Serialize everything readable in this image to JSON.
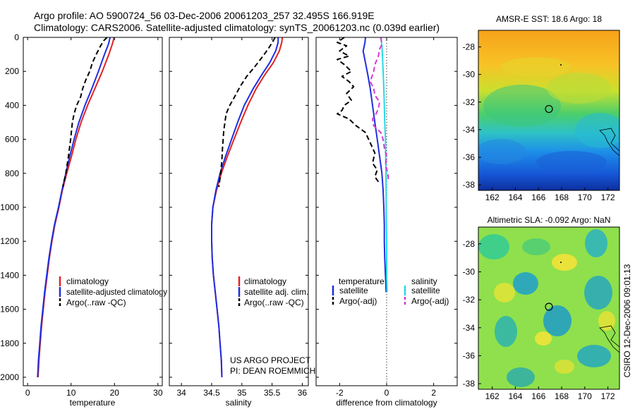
{
  "header": {
    "line1": "Argo profile: AO 5900724_56 03-Dec-2006 20061203_257 32.495S 166.919E",
    "line2": "Climatology: CARS2006. Satellite-adjusted climatology: synTS_20061203.nc (0.039d earlier)"
  },
  "credit": "CSIRO 12-Dec-2006 09:01:13",
  "colors": {
    "climatology": "#e32222",
    "satellite": "#1f2ee0",
    "argo": "#000000",
    "sal_satellite": "#26d9e6",
    "sal_argo": "#d63ad6"
  },
  "chart_data": [
    {
      "id": "temperature",
      "type": "line",
      "xlabel": "temperature",
      "xlim": [
        -1,
        31
      ],
      "xticks": [
        0,
        10,
        20,
        30
      ],
      "ylim": [
        2050,
        0
      ],
      "yticks": [
        0,
        200,
        400,
        600,
        800,
        1000,
        1200,
        1400,
        1600,
        1800,
        2000
      ],
      "legend": [
        "climatology",
        "satellite-adjusted climatology",
        "Argo(..raw -QC)"
      ],
      "series": [
        {
          "name": "climatology",
          "color_key": "climatology",
          "dash": false,
          "points": [
            [
              19.9,
              0
            ],
            [
              19.5,
              40
            ],
            [
              18.7,
              100
            ],
            [
              17.2,
              200
            ],
            [
              15.5,
              300
            ],
            [
              13.8,
              400
            ],
            [
              12.3,
              500
            ],
            [
              11.1,
              600
            ],
            [
              10.1,
              700
            ],
            [
              9.0,
              800
            ],
            [
              8.0,
              900
            ],
            [
              7.2,
              1000
            ],
            [
              6.3,
              1100
            ],
            [
              5.6,
              1200
            ],
            [
              5.0,
              1300
            ],
            [
              4.5,
              1400
            ],
            [
              4.0,
              1500
            ],
            [
              3.6,
              1600
            ],
            [
              3.2,
              1700
            ],
            [
              2.9,
              1800
            ],
            [
              2.6,
              1900
            ],
            [
              2.4,
              2000
            ]
          ]
        },
        {
          "name": "satellite-adjusted climatology",
          "color_key": "satellite",
          "dash": false,
          "points": [
            [
              19.0,
              0
            ],
            [
              18.6,
              40
            ],
            [
              17.7,
              100
            ],
            [
              16.3,
              200
            ],
            [
              14.8,
              300
            ],
            [
              13.2,
              400
            ],
            [
              11.8,
              500
            ],
            [
              10.7,
              600
            ],
            [
              9.7,
              700
            ],
            [
              8.8,
              800
            ],
            [
              7.9,
              900
            ],
            [
              7.1,
              1000
            ],
            [
              6.2,
              1100
            ],
            [
              5.5,
              1200
            ],
            [
              4.9,
              1300
            ],
            [
              4.4,
              1400
            ],
            [
              3.9,
              1500
            ],
            [
              3.5,
              1600
            ],
            [
              3.1,
              1700
            ],
            [
              2.8,
              1800
            ],
            [
              2.5,
              1900
            ],
            [
              2.3,
              2000
            ]
          ]
        },
        {
          "name": "Argo(..raw -QC)",
          "color_key": "argo",
          "dash": true,
          "points": [
            [
              18.3,
              0
            ],
            [
              17.5,
              20
            ],
            [
              16.8,
              50
            ],
            [
              15.8,
              100
            ],
            [
              14.9,
              150
            ],
            [
              14.3,
              200
            ],
            [
              13.4,
              250
            ],
            [
              12.7,
              300
            ],
            [
              12.2,
              350
            ],
            [
              11.3,
              400
            ],
            [
              10.7,
              450
            ],
            [
              10.3,
              500
            ],
            [
              9.9,
              600
            ],
            [
              9.4,
              700
            ],
            [
              8.8,
              800
            ],
            [
              8.1,
              880
            ]
          ]
        }
      ]
    },
    {
      "id": "salinity",
      "type": "line",
      "xlabel": "salinity",
      "xlim": [
        33.8,
        36.1
      ],
      "xticks": [
        34,
        34.5,
        35,
        35.5,
        36
      ],
      "ylim": [
        2050,
        0
      ],
      "annotation": [
        "US ARGO PROJECT",
        "PI: DEAN ROEMMICH"
      ],
      "legend": [
        "climatology",
        "satellite adj. clim.",
        "Argo(..raw -QC)"
      ],
      "series": [
        {
          "name": "climatology",
          "color_key": "climatology",
          "dash": false,
          "points": [
            [
              35.67,
              0
            ],
            [
              35.66,
              30
            ],
            [
              35.62,
              80
            ],
            [
              35.52,
              150
            ],
            [
              35.38,
              220
            ],
            [
              35.24,
              300
            ],
            [
              35.1,
              400
            ],
            [
              34.98,
              500
            ],
            [
              34.87,
              600
            ],
            [
              34.76,
              700
            ],
            [
              34.66,
              800
            ],
            [
              34.58,
              900
            ],
            [
              34.52,
              1000
            ],
            [
              34.5,
              1100
            ],
            [
              34.5,
              1200
            ],
            [
              34.51,
              1300
            ],
            [
              34.53,
              1400
            ],
            [
              34.56,
              1500
            ],
            [
              34.59,
              1600
            ],
            [
              34.62,
              1700
            ],
            [
              34.64,
              1800
            ],
            [
              34.66,
              1900
            ],
            [
              34.67,
              2000
            ]
          ]
        },
        {
          "name": "satellite adj. clim.",
          "color_key": "satellite",
          "dash": false,
          "points": [
            [
              35.6,
              0
            ],
            [
              35.6,
              30
            ],
            [
              35.56,
              80
            ],
            [
              35.46,
              150
            ],
            [
              35.33,
              220
            ],
            [
              35.19,
              300
            ],
            [
              35.04,
              400
            ],
            [
              34.93,
              500
            ],
            [
              34.83,
              600
            ],
            [
              34.73,
              700
            ],
            [
              34.64,
              800
            ],
            [
              34.57,
              900
            ],
            [
              34.52,
              1000
            ],
            [
              34.5,
              1100
            ],
            [
              34.5,
              1200
            ],
            [
              34.51,
              1300
            ],
            [
              34.53,
              1400
            ],
            [
              34.56,
              1500
            ],
            [
              34.59,
              1600
            ],
            [
              34.62,
              1700
            ],
            [
              34.64,
              1800
            ],
            [
              34.66,
              1900
            ],
            [
              34.67,
              2000
            ]
          ]
        },
        {
          "name": "Argo(..raw -QC)",
          "color_key": "argo",
          "dash": true,
          "points": [
            [
              35.55,
              0
            ],
            [
              35.52,
              20
            ],
            [
              35.45,
              60
            ],
            [
              35.35,
              110
            ],
            [
              35.22,
              170
            ],
            [
              35.08,
              230
            ],
            [
              34.97,
              290
            ],
            [
              34.88,
              350
            ],
            [
              34.8,
              400
            ],
            [
              34.74,
              450
            ],
            [
              34.72,
              500
            ],
            [
              34.7,
              550
            ],
            [
              34.68,
              650
            ],
            [
              34.67,
              720
            ],
            [
              34.65,
              800
            ],
            [
              34.62,
              880
            ]
          ]
        }
      ]
    },
    {
      "id": "difference",
      "type": "line",
      "xlabel": "difference from climatology",
      "xlim": [
        -3,
        3
      ],
      "xticks": [
        -2,
        0,
        2
      ],
      "ylim": [
        2050,
        0
      ],
      "zero_line": 0,
      "legend": {
        "temperature": [
          "satellite",
          "Argo(-adj)"
        ],
        "salinity": [
          "satellite",
          "Argo(-adj)"
        ]
      },
      "legend_headers": [
        "temperature",
        "salinity"
      ],
      "series": [
        {
          "name": "temperature satellite",
          "color_key": "satellite",
          "dash": false,
          "points": [
            [
              -0.9,
              0
            ],
            [
              -0.92,
              30
            ],
            [
              -1.0,
              80
            ],
            [
              -0.9,
              150
            ],
            [
              -0.8,
              220
            ],
            [
              -0.7,
              300
            ],
            [
              -0.6,
              400
            ],
            [
              -0.5,
              500
            ],
            [
              -0.4,
              600
            ],
            [
              -0.3,
              700
            ],
            [
              -0.2,
              800
            ],
            [
              -0.15,
              900
            ],
            [
              -0.12,
              1000
            ],
            [
              -0.1,
              1100
            ],
            [
              -0.1,
              1200
            ],
            [
              -0.08,
              1300
            ],
            [
              -0.05,
              1400
            ],
            [
              -0.02,
              1500
            ]
          ]
        },
        {
          "name": "temperature Argo(-adj)",
          "color_key": "argo",
          "dash": true,
          "points": [
            [
              -1.8,
              0
            ],
            [
              -2.1,
              30
            ],
            [
              -1.7,
              50
            ],
            [
              -2.0,
              80
            ],
            [
              -1.6,
              110
            ],
            [
              -2.1,
              130
            ],
            [
              -1.8,
              160
            ],
            [
              -1.5,
              200
            ],
            [
              -1.9,
              230
            ],
            [
              -1.6,
              260
            ],
            [
              -1.4,
              290
            ],
            [
              -1.7,
              330
            ],
            [
              -1.5,
              370
            ],
            [
              -1.8,
              400
            ],
            [
              -1.9,
              430
            ],
            [
              -2.1,
              450
            ],
            [
              -1.6,
              480
            ],
            [
              -1.3,
              520
            ],
            [
              -0.9,
              560
            ],
            [
              -0.7,
              620
            ],
            [
              -0.5,
              680
            ],
            [
              -0.6,
              740
            ],
            [
              -0.4,
              780
            ],
            [
              -0.5,
              820
            ],
            [
              -0.3,
              860
            ]
          ]
        },
        {
          "name": "salinity satellite",
          "color_key": "sal_satellite",
          "dash": false,
          "points": [
            [
              -0.25,
              0
            ],
            [
              -0.2,
              50
            ],
            [
              -0.18,
              100
            ],
            [
              -0.15,
              200
            ],
            [
              -0.12,
              300
            ],
            [
              -0.1,
              400
            ],
            [
              -0.08,
              500
            ],
            [
              -0.05,
              600
            ],
            [
              -0.04,
              700
            ],
            [
              -0.03,
              800
            ],
            [
              -0.02,
              900
            ],
            [
              -0.02,
              1000
            ],
            [
              -0.01,
              1100
            ],
            [
              0.0,
              1200
            ],
            [
              0.0,
              1300
            ],
            [
              0.0,
              1400
            ],
            [
              0.02,
              1500
            ]
          ]
        },
        {
          "name": "salinity Argo(-adj)",
          "color_key": "sal_argo",
          "dash": true,
          "points": [
            [
              -0.25,
              0
            ],
            [
              -0.2,
              40
            ],
            [
              -0.3,
              70
            ],
            [
              -0.35,
              110
            ],
            [
              -0.5,
              160
            ],
            [
              -0.55,
              200
            ],
            [
              -0.7,
              260
            ],
            [
              -0.55,
              300
            ],
            [
              -0.5,
              340
            ],
            [
              -0.3,
              380
            ],
            [
              -0.35,
              420
            ],
            [
              -0.45,
              450
            ],
            [
              -0.6,
              480
            ],
            [
              -0.55,
              520
            ],
            [
              -0.25,
              560
            ],
            [
              -0.15,
              600
            ],
            [
              -0.1,
              650
            ],
            [
              0.0,
              700
            ],
            [
              -0.05,
              750
            ],
            [
              0.05,
              800
            ],
            [
              0.08,
              850
            ]
          ]
        }
      ]
    },
    {
      "id": "amsr-e-sst",
      "type": "heatmap",
      "title": "AMSR-E SST: 18.6 Argo: 18",
      "xlim": [
        160.8,
        173
      ],
      "ylim": [
        -38.4,
        -26.8
      ],
      "xticks": [
        162,
        164,
        166,
        168,
        170,
        172
      ],
      "yticks": [
        -28,
        -30,
        -32,
        -34,
        -36,
        -38
      ],
      "profile_location": {
        "lon": 166.9,
        "lat": -32.5
      }
    },
    {
      "id": "altimetric-sla",
      "type": "heatmap",
      "title": "Altimetric SLA: -0.092 Argo: NaN",
      "xlim": [
        160.8,
        173
      ],
      "ylim": [
        -38.4,
        -26.8
      ],
      "xticks": [
        162,
        164,
        166,
        168,
        170,
        172
      ],
      "yticks": [
        -28,
        -30,
        -32,
        -34,
        -36,
        -38
      ],
      "profile_location": {
        "lon": 166.9,
        "lat": -32.5
      }
    }
  ]
}
